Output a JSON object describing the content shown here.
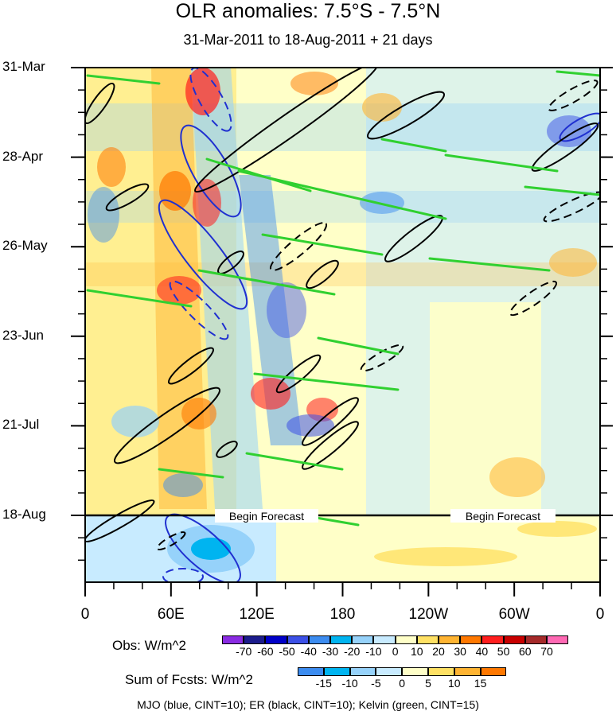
{
  "chart_data": {
    "type": "heatmap",
    "title": "OLR anomalies: 7.5°S - 7.5°N",
    "subtitle": "31-Mar-2011 to 18-Aug-2011 + 21 days",
    "xlabel": "",
    "ylabel": "",
    "x_ticks": [
      "0",
      "60E",
      "120E",
      "180",
      "120W",
      "60W",
      "0"
    ],
    "y_ticks": [
      "31-Mar",
      "28-Apr",
      "26-May",
      "23-Jun",
      "21-Jul",
      "18-Aug"
    ],
    "forecast_labels": [
      "Begin Forecast",
      "Begin Forecast"
    ],
    "obs_colorbar": {
      "label": "Obs: W/m^2",
      "levels": [
        "-70",
        "-60",
        "-50",
        "-40",
        "-30",
        "-20",
        "-10",
        "0",
        "10",
        "20",
        "30",
        "40",
        "50",
        "60",
        "70"
      ],
      "colors": [
        "#8a2be2",
        "#1c1c8c",
        "#0000c8",
        "#3c50e6",
        "#3c8cf0",
        "#00b4f0",
        "#96d2fa",
        "#c8ebff",
        "#ffffc8",
        "#ffe164",
        "#ffb432",
        "#ff7800",
        "#ff1e1e",
        "#c80000",
        "#a52a2a",
        "#ff69b4"
      ]
    },
    "fcst_colorbar": {
      "label": "Sum of Fcsts: W/m^2",
      "levels": [
        "-15",
        "-10",
        "-5",
        "0",
        "5",
        "10",
        "15"
      ],
      "colors": [
        "#3c8cf0",
        "#00b4f0",
        "#96d2fa",
        "#c8ebff",
        "#ffffc8",
        "#ffe164",
        "#ffb432",
        "#ff7800"
      ]
    },
    "contours_note": "MJO (blue, CINT=10); ER (black, CINT=10); Kelvin (green, CINT=15)"
  }
}
